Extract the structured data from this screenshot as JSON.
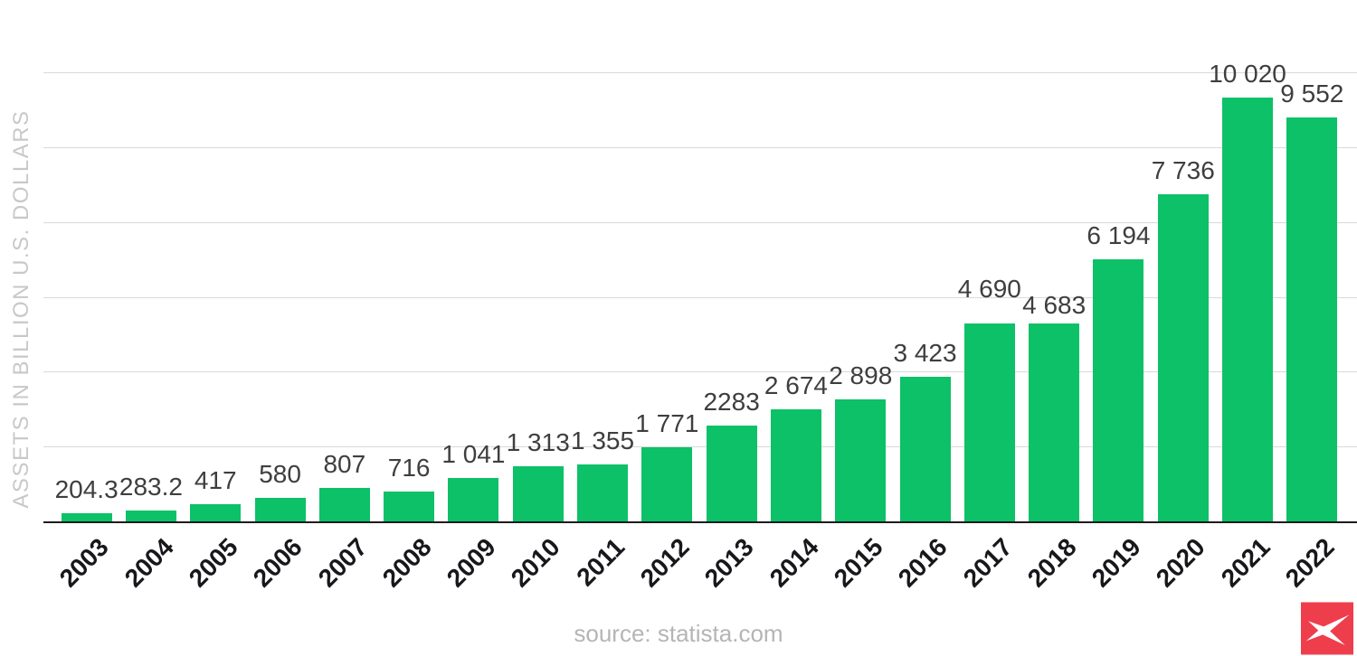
{
  "chart_data": {
    "type": "bar",
    "title": "",
    "xlabel": "",
    "ylabel": "ASSETS IN BILLION U.S. DOLLARS",
    "source_caption": "source: statista.com",
    "categories": [
      "2003",
      "2004",
      "2005",
      "2006",
      "2007",
      "2008",
      "2009",
      "2010",
      "2011",
      "2012",
      "2013",
      "2014",
      "2015",
      "2016",
      "2017",
      "2018",
      "2019",
      "2020",
      "2021",
      "2022"
    ],
    "values": [
      204.3,
      283.2,
      417,
      580,
      807,
      716,
      1041,
      1313,
      1355,
      1771,
      2283,
      2674,
      2898,
      3423,
      4690,
      4683,
      6194,
      7736,
      10020,
      9552
    ],
    "value_labels": [
      "204.3",
      "283.2",
      "417",
      "580",
      "807",
      "716",
      "1 041",
      "1 313",
      "1 355",
      "1 771",
      "2283",
      "2 674",
      "2 898",
      "3 423",
      "4 690",
      "4 683",
      "6 194",
      "7 736",
      "10 020",
      "9 552"
    ],
    "bar_color": "#0cc167",
    "grid": true,
    "gridline_count": 6,
    "ylim": [
      0,
      10580
    ],
    "legend": "none",
    "label_dy": [
      0,
      0,
      0,
      0,
      0,
      0,
      0,
      0,
      0,
      0,
      0,
      0,
      0,
      0,
      12,
      -6,
      0,
      0,
      0,
      0
    ]
  },
  "branding": {
    "logo_name": "statista-logo",
    "logo_color": "#ee3e4c"
  }
}
